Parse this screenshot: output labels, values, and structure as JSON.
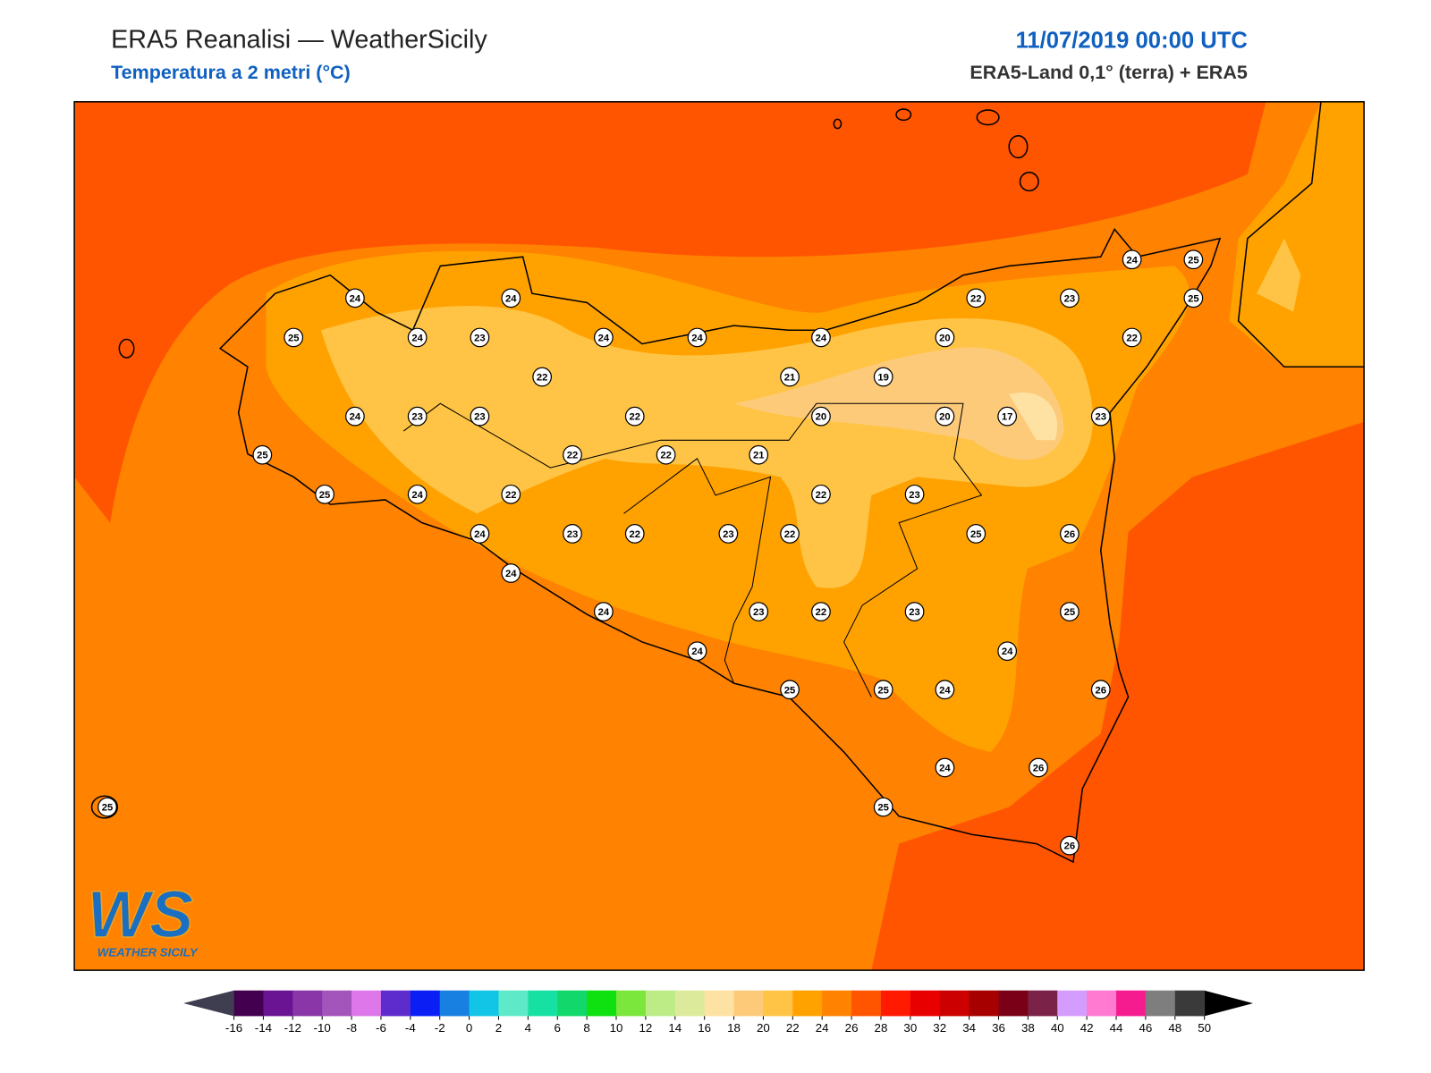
{
  "header": {
    "title": "ERA5 Reanalisi — WeatherSicily",
    "subtitle": "Temperatura a 2 metri (°C)",
    "datetime": "11/07/2019 00:00 UTC",
    "source": "ERA5-Land 0,1° (terra) + ERA5"
  },
  "stations": {
    "values": [
      24,
      24,
      22,
      23,
      25,
      24,
      25,
      25,
      24,
      23,
      24,
      24,
      24,
      20,
      22,
      22,
      21,
      19,
      24,
      23,
      23,
      22,
      20,
      20,
      17,
      23,
      25,
      22,
      22,
      21,
      25,
      24,
      22,
      22,
      23,
      24,
      23,
      22,
      23,
      22,
      25,
      26,
      24,
      24,
      23,
      22,
      23,
      25,
      24,
      24,
      25,
      25,
      24,
      26,
      24,
      26,
      25,
      25,
      26
    ]
  },
  "colorbar": {
    "ticks": [
      -16,
      -14,
      -12,
      -10,
      -8,
      -6,
      -4,
      -2,
      0,
      2,
      4,
      6,
      8,
      10,
      12,
      14,
      16,
      18,
      20,
      22,
      24,
      26,
      28,
      30,
      32,
      34,
      36,
      38,
      40,
      42,
      44,
      46,
      48,
      50
    ],
    "colors": [
      "#42004f",
      "#6a1494",
      "#8a36a8",
      "#a455bb",
      "#dd77ea",
      "#5e2ccd",
      "#0b1ff5",
      "#1880e0",
      "#12c4e6",
      "#5ee9c9",
      "#17e0a3",
      "#12d76a",
      "#0fe00f",
      "#7be63c",
      "#bdec86",
      "#dceb9b",
      "#fee2a4",
      "#fdca7a",
      "#ffc445",
      "#ffa200",
      "#ff8200",
      "#ff5500",
      "#ff1a00",
      "#e80000",
      "#cc0000",
      "#a60000",
      "#7a0018",
      "#7b2248",
      "#d49cfc",
      "#ff7ad0",
      "#f51c8f",
      "#7e7e7e",
      "#3a3a3a"
    ],
    "under_color": "#3e3e50",
    "over_color": "#000000"
  },
  "logo": {
    "mark": "WS",
    "text": "WEATHER SICILY"
  }
}
